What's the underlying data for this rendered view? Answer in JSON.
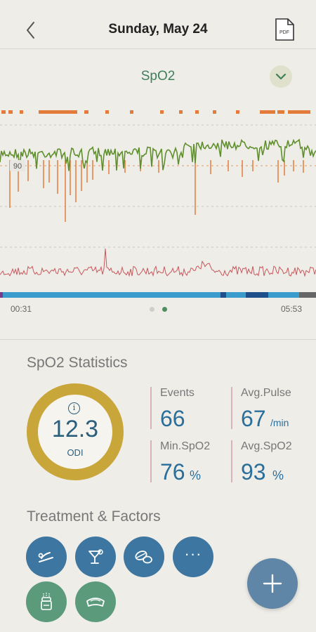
{
  "header": {
    "title": "Sunday, May 24",
    "pdf_icon_text": "PDF"
  },
  "section": {
    "title": "SpO2"
  },
  "chart_data": {
    "type": "line",
    "threshold_label": "90",
    "x_start": "00:31",
    "x_end": "05:53",
    "colors": {
      "spo2_normal": "#5f8f2c",
      "spo2_desat": "#e37c3a",
      "pulse": "#c8575c",
      "event_marks": "#e37c3a",
      "timeline": "#3a9ccc"
    }
  },
  "pager": {
    "count": 2,
    "active": 1
  },
  "stats": {
    "title": "SpO2 Statistics",
    "odi": {
      "value": "12.3",
      "label": "ODI",
      "info": "i"
    },
    "events": {
      "label": "Events",
      "value": "66"
    },
    "avg_pulse": {
      "label": "Avg.Pulse",
      "value": "67",
      "unit": "/min"
    },
    "min_spo2": {
      "label": "Min.SpO2",
      "value": "76",
      "unit": "%"
    },
    "avg_spo2": {
      "label": "Avg.SpO2",
      "value": "93",
      "unit": "%"
    }
  },
  "treatment": {
    "title": "Treatment & Factors",
    "buttons": [
      "sleep-position-icon",
      "alcohol-icon",
      "medication-icon",
      "more-icon",
      "cpap-icon",
      "mouthguard-icon"
    ],
    "more_text": "···"
  },
  "fab_icon": "plus-icon"
}
